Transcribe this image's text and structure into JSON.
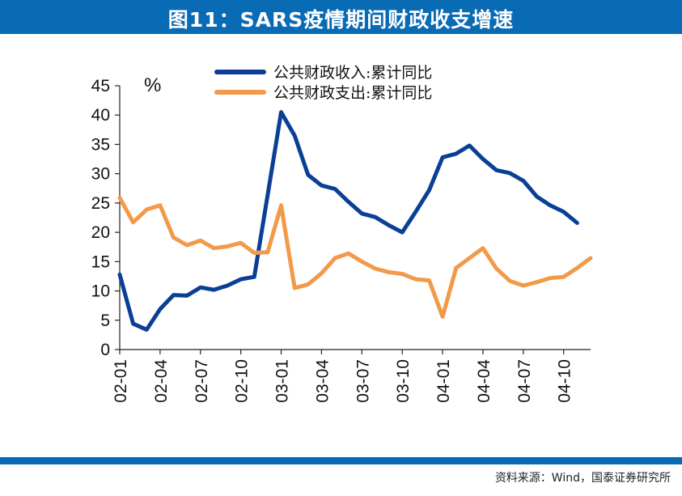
{
  "header": {
    "title": "图11：SARS疫情期间财政收支增速"
  },
  "footer": {
    "source": "资料来源：Wind，国泰证券研究所"
  },
  "colors": {
    "brand_blue": "#0a6bb5",
    "revenue": "#0b3f96",
    "expenditure": "#f2994a"
  },
  "chart_data": {
    "type": "line",
    "title": "",
    "unit_label": "%",
    "ylim": [
      0,
      45
    ],
    "yticks": [
      0,
      5,
      10,
      15,
      20,
      25,
      30,
      35,
      40,
      45
    ],
    "x": [
      "02-01",
      "02-02",
      "02-03",
      "02-04",
      "02-05",
      "02-06",
      "02-07",
      "02-08",
      "02-09",
      "02-10",
      "02-11",
      "02-12",
      "03-01",
      "03-02",
      "03-03",
      "03-04",
      "03-05",
      "03-06",
      "03-07",
      "03-08",
      "03-09",
      "03-10",
      "03-11",
      "03-12",
      "04-01",
      "04-02",
      "04-03",
      "04-04",
      "04-05",
      "04-06",
      "04-07",
      "04-08",
      "04-09",
      "04-10",
      "04-11",
      "04-12"
    ],
    "xtick_labels": [
      "02-01",
      "02-04",
      "02-07",
      "02-10",
      "03-01",
      "03-04",
      "03-07",
      "03-10",
      "04-01",
      "04-04",
      "04-07",
      "04-10"
    ],
    "legend_position": "top",
    "grid": false,
    "series": [
      {
        "name": "公共财政收入:累计同比",
        "color": "#0b3f96",
        "values": [
          12.8,
          4.4,
          3.4,
          6.9,
          9.3,
          9.2,
          10.6,
          10.2,
          10.9,
          12.0,
          12.4,
          26.4,
          40.5,
          36.5,
          29.8,
          28.0,
          27.4,
          25.2,
          23.2,
          22.6,
          21.2,
          20.0,
          23.5,
          27.2,
          32.8,
          33.4,
          34.8,
          32.5,
          30.6,
          30.1,
          28.8,
          26.1,
          24.6,
          23.5,
          21.6,
          null
        ]
      },
      {
        "name": "公共财政支出:累计同比",
        "color": "#f2994a",
        "values": [
          25.9,
          21.7,
          23.9,
          24.6,
          19.1,
          17.8,
          18.6,
          17.3,
          17.6,
          18.2,
          16.5,
          16.6,
          24.6,
          10.5,
          11.1,
          13.0,
          15.6,
          16.4,
          15.0,
          13.8,
          13.2,
          12.9,
          12.0,
          11.8,
          5.6,
          13.9,
          15.6,
          17.3,
          13.8,
          11.7,
          10.9,
          11.5,
          12.2,
          12.4,
          13.9,
          15.6
        ]
      }
    ]
  }
}
